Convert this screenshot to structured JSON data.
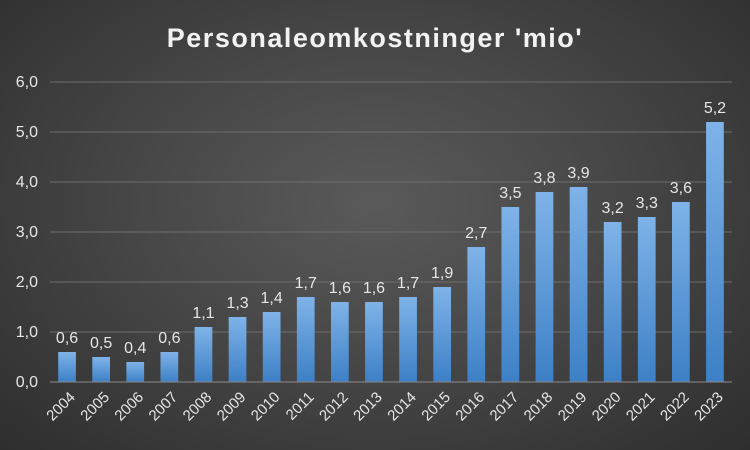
{
  "chart_data": {
    "type": "bar",
    "title": "Personaleomkostninger 'mio'",
    "xlabel": "",
    "ylabel": "",
    "categories": [
      "2004",
      "2005",
      "2006",
      "2007",
      "2008",
      "2009",
      "2010",
      "2011",
      "2012",
      "2013",
      "2014",
      "2015",
      "2016",
      "2017",
      "2018",
      "2019",
      "2020",
      "2021",
      "2022",
      "2023"
    ],
    "values": [
      0.6,
      0.5,
      0.4,
      0.6,
      1.1,
      1.3,
      1.4,
      1.7,
      1.6,
      1.6,
      1.7,
      1.9,
      2.7,
      3.5,
      3.8,
      3.9,
      3.2,
      3.3,
      3.6,
      5.2
    ],
    "data_labels": [
      "0,6",
      "0,5",
      "0,4",
      "0,6",
      "1,1",
      "1,3",
      "1,4",
      "1,7",
      "1,6",
      "1,6",
      "1,7",
      "1,9",
      "2,7",
      "3,5",
      "3,8",
      "3,9",
      "3,2",
      "3,3",
      "3,6",
      "5,2"
    ],
    "ylim": [
      0,
      6
    ],
    "yticks": [
      0,
      1,
      2,
      3,
      4,
      5,
      6
    ],
    "ytick_labels": [
      "0,0",
      "1,0",
      "2,0",
      "3,0",
      "4,0",
      "5,0",
      "6,0"
    ],
    "grid": true,
    "legend": "none",
    "colors": {
      "bar_top": "#7fb3e8",
      "bar_bottom": "#3d80c6",
      "background": "#474747"
    }
  }
}
